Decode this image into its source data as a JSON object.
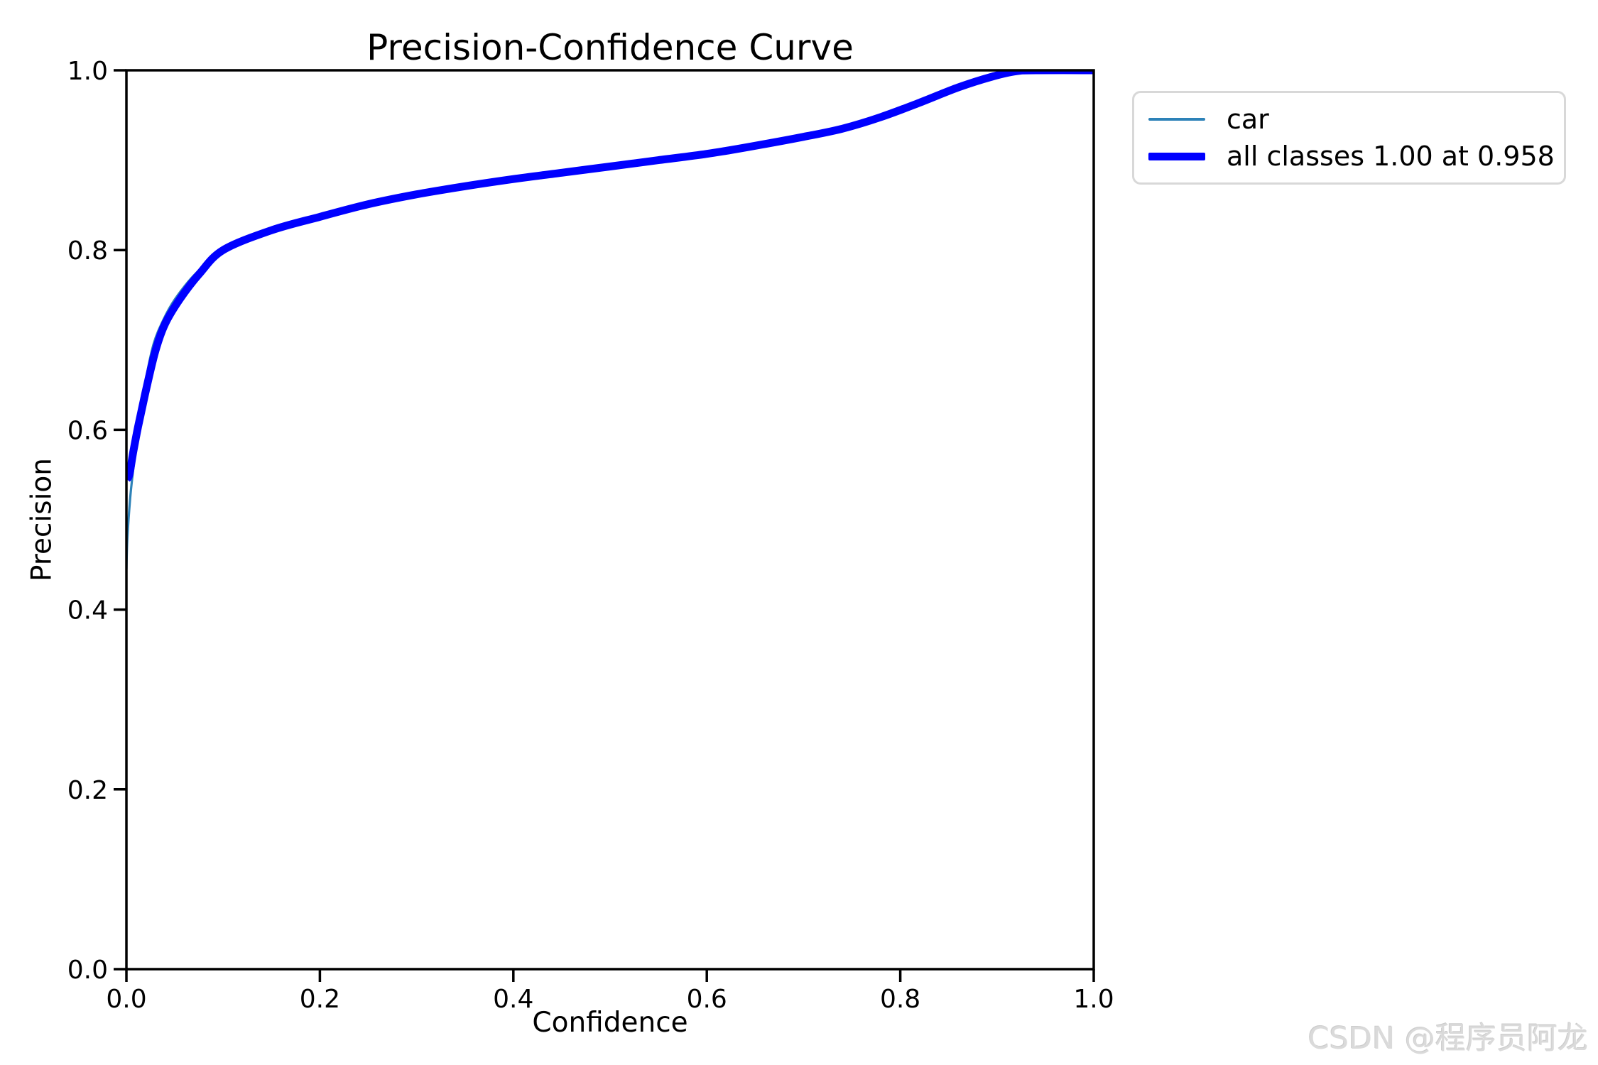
{
  "figure": {
    "background": "#ffffff",
    "text_color": "#000000",
    "spine_color": "#000000"
  },
  "chart_data": {
    "type": "line",
    "title": "Precision-Confidence Curve",
    "xlabel": "Confidence",
    "ylabel": "Precision",
    "xlim": [
      0.0,
      1.0
    ],
    "ylim": [
      0.0,
      1.0
    ],
    "xticks": [
      "0.0",
      "0.2",
      "0.4",
      "0.6",
      "0.8",
      "1.0"
    ],
    "yticks": [
      "0.0",
      "0.2",
      "0.4",
      "0.6",
      "0.8",
      "1.0"
    ],
    "grid": false,
    "legend": {
      "position": "outside-upper-right",
      "entries": [
        {
          "label": "car",
          "color": "#2d82b8",
          "line_width": 3.2
        },
        {
          "label": "all classes 1.00 at 0.958",
          "color": "#0000ff",
          "line_width": 11
        }
      ]
    },
    "series": [
      {
        "name": "car",
        "color": "#2d82b8",
        "width": 3.2,
        "points": [
          [
            0.0,
            0.445
          ],
          [
            0.001,
            0.48
          ],
          [
            0.004,
            0.525
          ],
          [
            0.008,
            0.565
          ],
          [
            0.013,
            0.605
          ],
          [
            0.02,
            0.655
          ],
          [
            0.028,
            0.695
          ],
          [
            0.038,
            0.722
          ],
          [
            0.05,
            0.745
          ],
          [
            0.07,
            0.772
          ],
          [
            0.1,
            0.8
          ],
          [
            0.15,
            0.822
          ],
          [
            0.2,
            0.837
          ],
          [
            0.25,
            0.851
          ],
          [
            0.3,
            0.862
          ],
          [
            0.35,
            0.871
          ],
          [
            0.4,
            0.879
          ],
          [
            0.45,
            0.886
          ],
          [
            0.5,
            0.893
          ],
          [
            0.55,
            0.9
          ],
          [
            0.6,
            0.907
          ],
          [
            0.65,
            0.916
          ],
          [
            0.7,
            0.926
          ],
          [
            0.74,
            0.935
          ],
          [
            0.78,
            0.948
          ],
          [
            0.82,
            0.964
          ],
          [
            0.86,
            0.981
          ],
          [
            0.895,
            0.993
          ],
          [
            0.92,
            0.999
          ],
          [
            0.94,
            1.0
          ],
          [
            1.0,
            1.0
          ]
        ]
      },
      {
        "name": "all classes",
        "color": "#0000ff",
        "width": 11,
        "points": [
          [
            0.0,
            0.545
          ],
          [
            0.003,
            0.55
          ],
          [
            0.007,
            0.575
          ],
          [
            0.012,
            0.603
          ],
          [
            0.02,
            0.643
          ],
          [
            0.03,
            0.688
          ],
          [
            0.04,
            0.718
          ],
          [
            0.055,
            0.745
          ],
          [
            0.075,
            0.773
          ],
          [
            0.1,
            0.8
          ],
          [
            0.15,
            0.822
          ],
          [
            0.2,
            0.837
          ],
          [
            0.25,
            0.851
          ],
          [
            0.3,
            0.862
          ],
          [
            0.35,
            0.871
          ],
          [
            0.4,
            0.879
          ],
          [
            0.45,
            0.886
          ],
          [
            0.5,
            0.893
          ],
          [
            0.55,
            0.9
          ],
          [
            0.6,
            0.907
          ],
          [
            0.65,
            0.916
          ],
          [
            0.7,
            0.926
          ],
          [
            0.74,
            0.935
          ],
          [
            0.78,
            0.948
          ],
          [
            0.82,
            0.964
          ],
          [
            0.86,
            0.981
          ],
          [
            0.895,
            0.993
          ],
          [
            0.92,
            0.999
          ],
          [
            0.94,
            1.0
          ],
          [
            1.0,
            1.0
          ]
        ]
      }
    ]
  },
  "watermark": {
    "text": "CSDN @程序员阿龙",
    "color": "#dadada"
  }
}
